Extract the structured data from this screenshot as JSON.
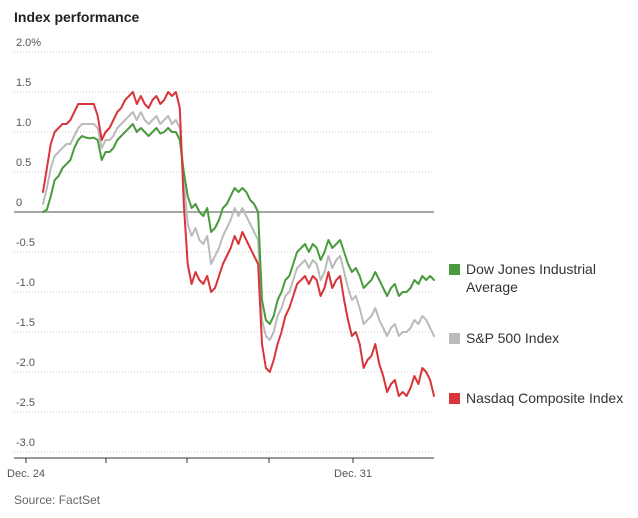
{
  "chart_data": {
    "type": "line",
    "title": "Index performance",
    "source": "Source: FactSet",
    "ylim": [
      -3.0,
      2.0
    ],
    "yticks": [
      {
        "value": 2.0,
        "label": "2.0%"
      },
      {
        "value": 1.5,
        "label": "1.5"
      },
      {
        "value": 1.0,
        "label": "1.0"
      },
      {
        "value": 0.5,
        "label": "0.5"
      },
      {
        "value": 0,
        "label": "0"
      },
      {
        "value": -0.5,
        "label": "-0.5"
      },
      {
        "value": -1.0,
        "label": "-1.0"
      },
      {
        "value": -1.5,
        "label": "-1.5"
      },
      {
        "value": -2.0,
        "label": "-2.0"
      },
      {
        "value": -2.5,
        "label": "-2.5"
      },
      {
        "value": -3.0,
        "label": "-3.0"
      }
    ],
    "xlim": [
      0,
      5
    ],
    "xticks": [
      {
        "value": 0,
        "label": "Dec. 24"
      },
      {
        "value": 1,
        "label": ""
      },
      {
        "value": 2,
        "label": ""
      },
      {
        "value": 3,
        "label": ""
      },
      {
        "value": 4,
        "label": "Dec. 31"
      }
    ],
    "series": [
      {
        "name": "Dow Jones Industrial Average",
        "legend_lines": [
          "Dow Jones Industrial",
          "Average"
        ],
        "color": "#4a9a3e",
        "x": [
          0.0,
          0.05,
          0.1,
          0.15,
          0.2,
          0.25,
          0.3,
          0.35,
          0.4,
          0.45,
          0.5,
          0.55,
          0.6,
          0.65,
          0.7,
          0.75,
          0.8,
          0.85,
          0.9,
          0.95,
          1.0,
          1.05,
          1.1,
          1.15,
          1.2,
          1.25,
          1.3,
          1.35,
          1.4,
          1.45,
          1.5,
          1.55,
          1.6,
          1.65,
          1.7,
          1.75,
          1.8,
          1.85,
          1.9,
          1.95,
          2.0,
          2.05,
          2.1,
          2.15,
          2.2,
          2.25,
          2.3,
          2.35,
          2.4,
          2.45,
          2.5,
          2.55,
          2.6,
          2.65,
          2.7,
          2.75,
          2.8,
          2.85,
          2.9,
          2.95,
          3.0,
          3.05,
          3.1,
          3.15,
          3.2,
          3.25,
          3.3,
          3.35,
          3.4,
          3.45,
          3.5,
          3.55,
          3.6,
          3.65,
          3.7,
          3.75,
          3.8,
          3.85,
          3.9,
          3.95,
          4.0,
          4.05,
          4.1,
          4.15,
          4.2,
          4.25,
          4.3,
          4.35,
          4.4,
          4.45,
          4.5,
          4.55,
          4.6,
          4.65,
          4.7,
          4.75,
          4.8,
          4.85,
          4.9,
          4.95,
          5.0
        ],
        "values": [
          0.0,
          0.03,
          0.2,
          0.4,
          0.45,
          0.55,
          0.6,
          0.65,
          0.8,
          0.9,
          0.95,
          0.93,
          0.92,
          0.93,
          0.9,
          0.65,
          0.75,
          0.75,
          0.8,
          0.9,
          0.95,
          1.0,
          1.05,
          1.1,
          1.0,
          1.05,
          1.0,
          0.95,
          1.0,
          1.05,
          0.98,
          1.0,
          1.05,
          1.0,
          1.0,
          0.9,
          0.5,
          0.2,
          0.05,
          0.1,
          0.0,
          -0.05,
          0.05,
          -0.25,
          -0.2,
          -0.1,
          0.05,
          0.1,
          0.2,
          0.3,
          0.25,
          0.3,
          0.25,
          0.15,
          0.1,
          0.0,
          -1.1,
          -1.35,
          -1.4,
          -1.3,
          -1.1,
          -1.0,
          -0.85,
          -0.8,
          -0.65,
          -0.5,
          -0.45,
          -0.4,
          -0.5,
          -0.4,
          -0.45,
          -0.6,
          -0.5,
          -0.35,
          -0.45,
          -0.4,
          -0.35,
          -0.5,
          -0.65,
          -0.75,
          -0.7,
          -0.8,
          -0.95,
          -0.9,
          -0.85,
          -0.75,
          -0.85,
          -0.95,
          -1.05,
          -0.95,
          -0.9,
          -1.05,
          -1.0,
          -1.0,
          -0.95,
          -0.85,
          -0.9,
          -0.8,
          -0.85,
          -0.8,
          -0.85
        ]
      },
      {
        "name": "S&P 500 Index",
        "legend_lines": [
          "S&P 500 Index"
        ],
        "color": "#bbbbbb",
        "x": [
          0.0,
          0.05,
          0.1,
          0.15,
          0.2,
          0.25,
          0.3,
          0.35,
          0.4,
          0.45,
          0.5,
          0.55,
          0.6,
          0.65,
          0.7,
          0.75,
          0.8,
          0.85,
          0.9,
          0.95,
          1.0,
          1.05,
          1.1,
          1.15,
          1.2,
          1.25,
          1.3,
          1.35,
          1.4,
          1.45,
          1.5,
          1.55,
          1.6,
          1.65,
          1.7,
          1.75,
          1.8,
          1.85,
          1.9,
          1.95,
          2.0,
          2.05,
          2.1,
          2.15,
          2.2,
          2.25,
          2.3,
          2.35,
          2.4,
          2.45,
          2.5,
          2.55,
          2.6,
          2.65,
          2.7,
          2.75,
          2.8,
          2.85,
          2.9,
          2.95,
          3.0,
          3.05,
          3.1,
          3.15,
          3.2,
          3.25,
          3.3,
          3.35,
          3.4,
          3.45,
          3.5,
          3.55,
          3.6,
          3.65,
          3.7,
          3.75,
          3.8,
          3.85,
          3.9,
          3.95,
          4.0,
          4.05,
          4.1,
          4.15,
          4.2,
          4.25,
          4.3,
          4.35,
          4.4,
          4.45,
          4.5,
          4.55,
          4.6,
          4.65,
          4.7,
          4.75,
          4.8,
          4.85,
          4.9,
          4.95,
          5.0
        ],
        "values": [
          0.1,
          0.3,
          0.55,
          0.7,
          0.75,
          0.8,
          0.85,
          0.85,
          0.95,
          1.05,
          1.1,
          1.1,
          1.1,
          1.1,
          1.05,
          0.8,
          0.9,
          0.9,
          0.95,
          1.05,
          1.1,
          1.15,
          1.2,
          1.25,
          1.15,
          1.25,
          1.15,
          1.1,
          1.15,
          1.2,
          1.1,
          1.15,
          1.2,
          1.1,
          1.15,
          1.05,
          0.4,
          -0.15,
          -0.3,
          -0.2,
          -0.35,
          -0.4,
          -0.3,
          -0.65,
          -0.55,
          -0.45,
          -0.3,
          -0.2,
          -0.1,
          0.05,
          -0.05,
          0.05,
          -0.05,
          -0.15,
          -0.25,
          -0.35,
          -1.35,
          -1.55,
          -1.6,
          -1.5,
          -1.3,
          -1.2,
          -1.05,
          -1.0,
          -0.85,
          -0.7,
          -0.65,
          -0.6,
          -0.7,
          -0.6,
          -0.65,
          -0.85,
          -0.75,
          -0.55,
          -0.7,
          -0.6,
          -0.55,
          -0.75,
          -0.95,
          -1.1,
          -1.05,
          -1.2,
          -1.4,
          -1.35,
          -1.3,
          -1.2,
          -1.35,
          -1.45,
          -1.55,
          -1.45,
          -1.4,
          -1.55,
          -1.5,
          -1.5,
          -1.45,
          -1.35,
          -1.4,
          -1.3,
          -1.35,
          -1.45,
          -1.55
        ]
      },
      {
        "name": "Nasdaq Composite Index",
        "legend_lines": [
          "Nasdaq Composite Index"
        ],
        "color": "#d9343a",
        "x": [
          0.0,
          0.05,
          0.1,
          0.15,
          0.2,
          0.25,
          0.3,
          0.35,
          0.4,
          0.45,
          0.5,
          0.55,
          0.6,
          0.65,
          0.7,
          0.75,
          0.8,
          0.85,
          0.9,
          0.95,
          1.0,
          1.05,
          1.1,
          1.15,
          1.2,
          1.25,
          1.3,
          1.35,
          1.4,
          1.45,
          1.5,
          1.55,
          1.6,
          1.65,
          1.7,
          1.75,
          1.8,
          1.85,
          1.9,
          1.95,
          2.0,
          2.05,
          2.1,
          2.15,
          2.2,
          2.25,
          2.3,
          2.35,
          2.4,
          2.45,
          2.5,
          2.55,
          2.6,
          2.65,
          2.7,
          2.75,
          2.8,
          2.85,
          2.9,
          2.95,
          3.0,
          3.05,
          3.1,
          3.15,
          3.2,
          3.25,
          3.3,
          3.35,
          3.4,
          3.45,
          3.5,
          3.55,
          3.6,
          3.65,
          3.7,
          3.75,
          3.8,
          3.85,
          3.9,
          3.95,
          4.0,
          4.05,
          4.1,
          4.15,
          4.2,
          4.25,
          4.3,
          4.35,
          4.4,
          4.45,
          4.5,
          4.55,
          4.6,
          4.65,
          4.7,
          4.75,
          4.8,
          4.85,
          4.9,
          4.95,
          5.0
        ],
        "values": [
          0.25,
          0.55,
          0.85,
          1.0,
          1.05,
          1.1,
          1.1,
          1.15,
          1.25,
          1.35,
          1.35,
          1.35,
          1.35,
          1.35,
          1.2,
          0.9,
          1.0,
          1.05,
          1.15,
          1.25,
          1.3,
          1.4,
          1.45,
          1.5,
          1.35,
          1.45,
          1.35,
          1.3,
          1.4,
          1.45,
          1.35,
          1.4,
          1.5,
          1.45,
          1.5,
          1.3,
          0.1,
          -0.65,
          -0.9,
          -0.75,
          -0.85,
          -0.9,
          -0.8,
          -1.0,
          -0.95,
          -0.8,
          -0.65,
          -0.55,
          -0.45,
          -0.3,
          -0.4,
          -0.25,
          -0.35,
          -0.45,
          -0.55,
          -0.65,
          -1.65,
          -1.95,
          -2.0,
          -1.85,
          -1.65,
          -1.5,
          -1.3,
          -1.2,
          -1.05,
          -0.9,
          -0.85,
          -0.8,
          -0.9,
          -0.8,
          -0.85,
          -1.05,
          -0.95,
          -0.75,
          -0.95,
          -0.85,
          -0.8,
          -1.1,
          -1.35,
          -1.55,
          -1.5,
          -1.65,
          -1.95,
          -1.85,
          -1.8,
          -1.65,
          -1.9,
          -2.05,
          -2.25,
          -2.15,
          -2.1,
          -2.3,
          -2.25,
          -2.3,
          -2.2,
          -2.05,
          -2.15,
          -1.95,
          -2.0,
          -2.1,
          -2.3
        ]
      }
    ]
  }
}
